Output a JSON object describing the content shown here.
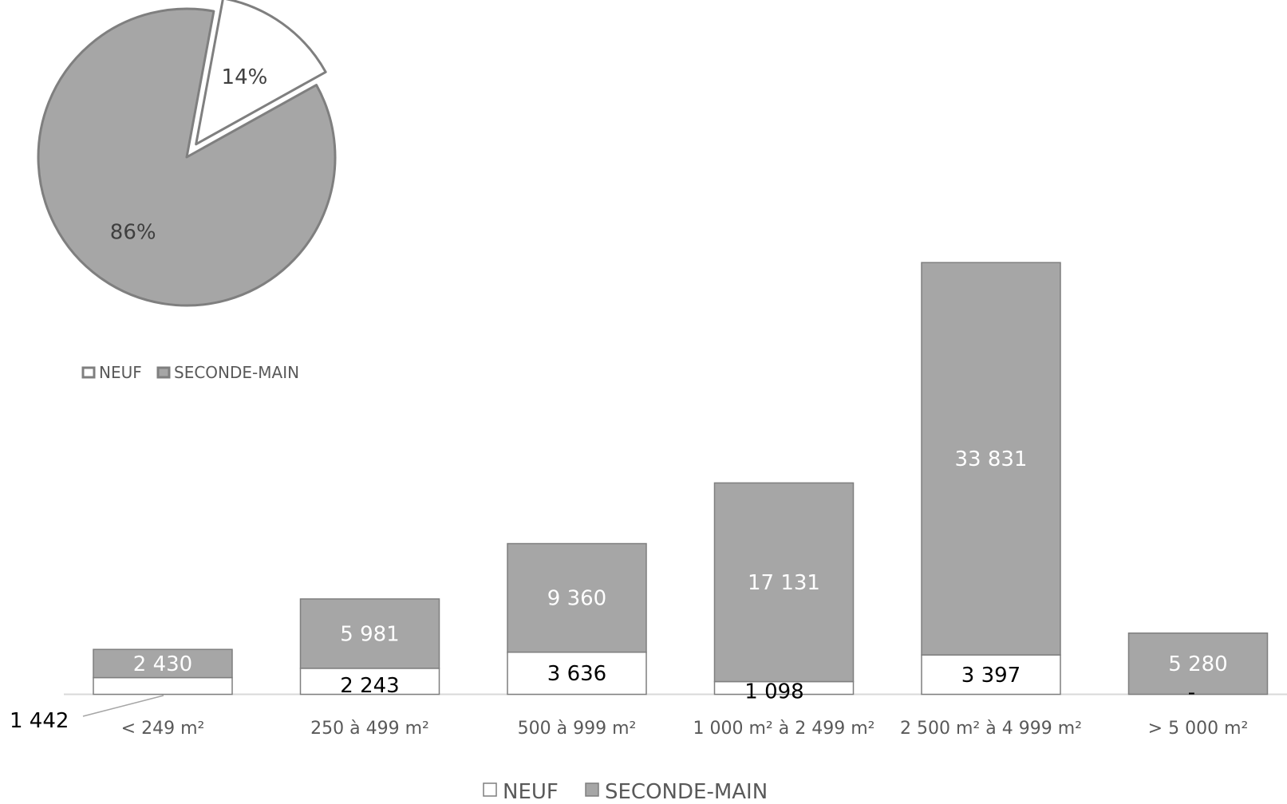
{
  "colors": {
    "neuf_fill": "#ffffff",
    "seconde_fill": "#a6a6a6",
    "outline": "#7f7f7f",
    "axis": "#d9d9d9"
  },
  "chart_data": [
    {
      "type": "pie",
      "slices": [
        {
          "name": "NEUF",
          "percent": 14,
          "label": "14%",
          "exploded": true
        },
        {
          "name": "SECONDE-MAIN",
          "percent": 86,
          "label": "86%",
          "exploded": false
        }
      ],
      "legend": [
        "NEUF",
        "SECONDE-MAIN"
      ],
      "legend_position": "bottom"
    },
    {
      "type": "bar",
      "stacked": true,
      "categories": [
        "< 249 m²",
        "250 à 499 m²",
        "500 à 999 m²",
        "1 000 m² à 2 499 m²",
        "2 500 m² à 4 999 m²",
        "> 5 000 m²"
      ],
      "series": [
        {
          "name": "NEUF",
          "values": [
            1442,
            2243,
            3636,
            1098,
            3397,
            0
          ],
          "labels": [
            "1 442",
            "2 243",
            "3 636",
            "1 098",
            "3 397",
            "-"
          ]
        },
        {
          "name": "SECONDE-MAIN",
          "values": [
            2430,
            5981,
            9360,
            17131,
            33831,
            5280
          ],
          "labels": [
            "2 430",
            "5 981",
            "9 360",
            "17 131",
            "33 831",
            "5 280"
          ]
        }
      ],
      "legend": [
        "NEUF",
        "SECONDE-MAIN"
      ],
      "legend_position": "bottom",
      "grid": false
    }
  ]
}
